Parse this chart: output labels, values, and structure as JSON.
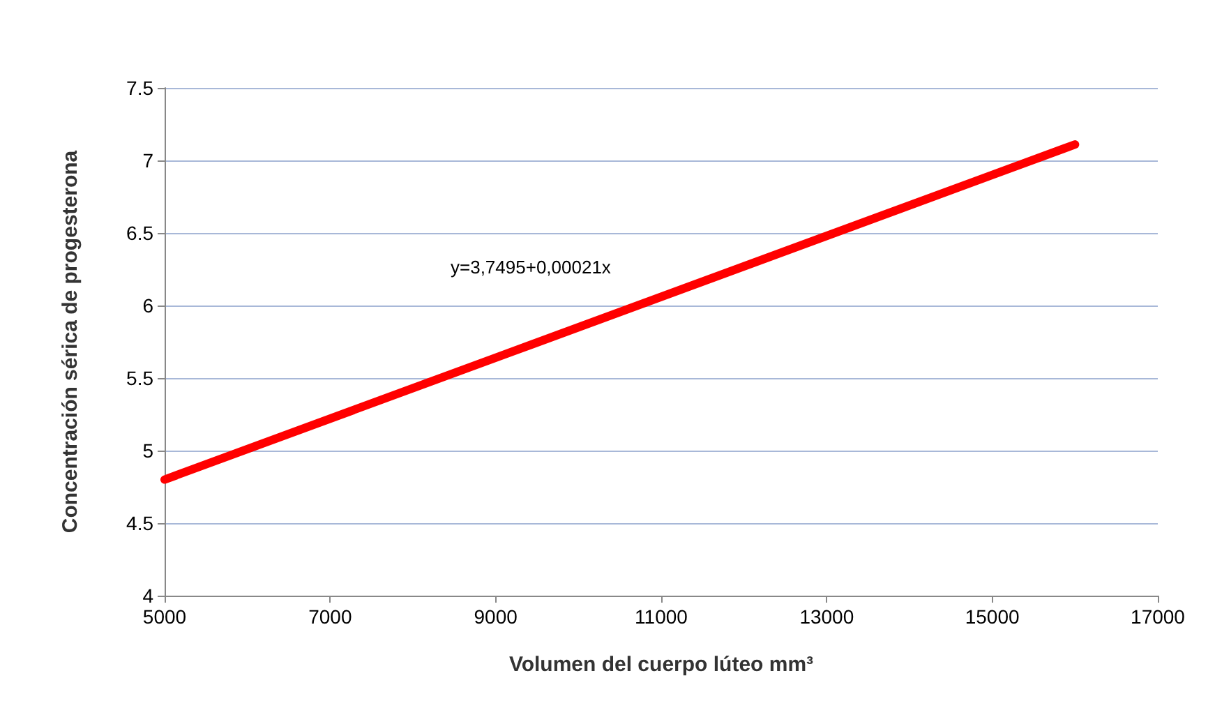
{
  "chart_data": {
    "type": "line",
    "xlabel": "Volumen del cuerpo lúteo mm³",
    "ylabel": "Concentración sérica de progesterona",
    "x": [
      5000,
      16000
    ],
    "series": [
      {
        "color": "#ff0000",
        "values": [
          4.8,
          7.11
        ]
      }
    ],
    "xlim": [
      5000,
      17000
    ],
    "xticks": [
      5000,
      7000,
      9000,
      11000,
      13000,
      15000,
      17000
    ],
    "ylim": [
      4,
      7.5
    ],
    "yticks": [
      4,
      4.5,
      5,
      5.5,
      6,
      6.5,
      7,
      7.5
    ],
    "grid": "y",
    "annotations": [
      "y=3,7495+0,00021x"
    ]
  }
}
